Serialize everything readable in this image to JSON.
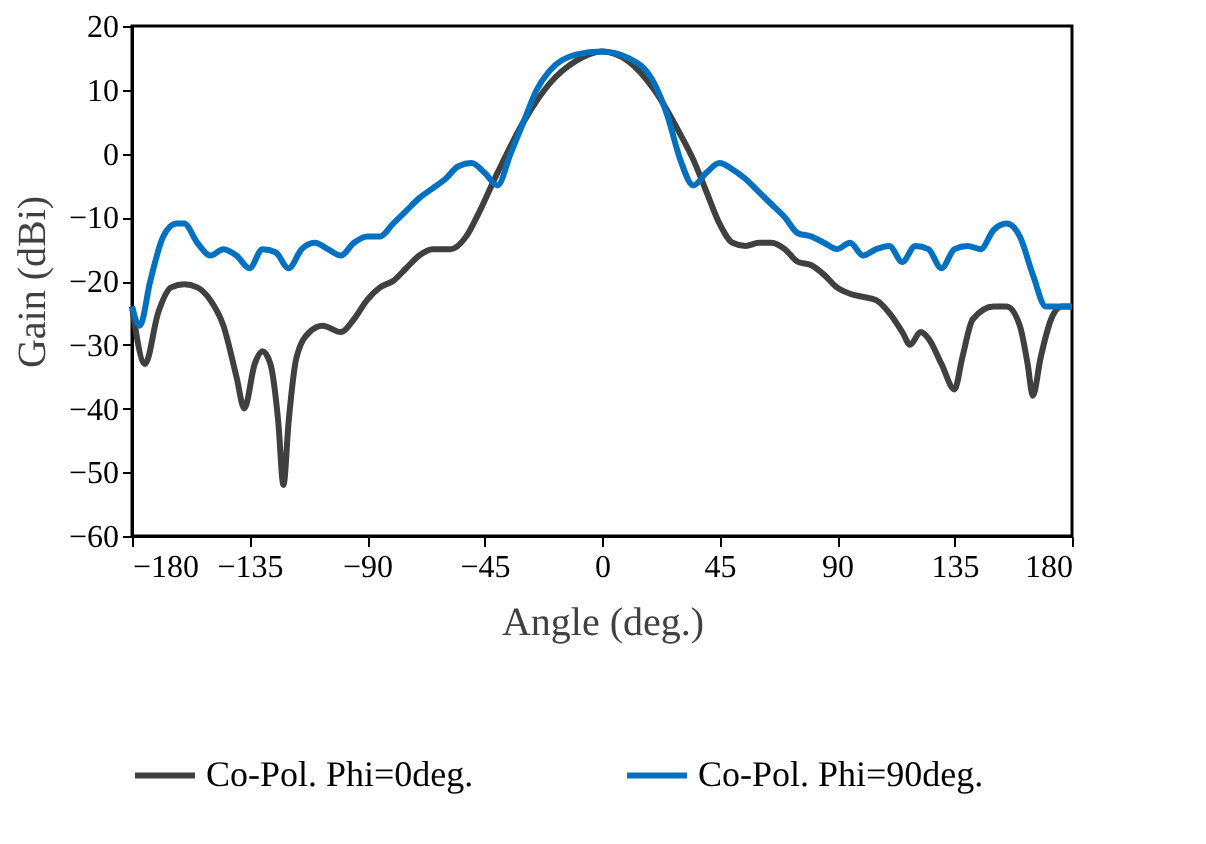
{
  "chart_data": {
    "type": "line",
    "xlabel": "Angle (deg.)",
    "ylabel": "Gain (dBi)",
    "xlim": [
      -180,
      180
    ],
    "xticks": [
      -180,
      -135,
      -90,
      -45,
      0,
      45,
      90,
      135,
      180
    ],
    "ylim": [
      -60,
      20
    ],
    "yticks": [
      -60,
      -50,
      -40,
      -30,
      -20,
      -10,
      0,
      10,
      20
    ],
    "grid": false,
    "legend": "bottom",
    "line_style": "solid",
    "marker": "none",
    "series": [
      {
        "name": "Co-Pol. Phi=0deg.",
        "color": "#404040",
        "x": [
          -180,
          -175,
          -170,
          -165,
          -160,
          -155,
          -150,
          -145,
          -140,
          -137,
          -133,
          -130,
          -127,
          -124,
          -122,
          -120,
          -117,
          -112,
          -107,
          -100,
          -95,
          -90,
          -85,
          -80,
          -75,
          -70,
          -65,
          -58,
          -52,
          -48,
          -40,
          -30,
          -20,
          -10,
          0,
          10,
          20,
          30,
          35,
          40,
          45,
          50,
          55,
          60,
          65,
          70,
          75,
          80,
          85,
          90,
          95,
          100,
          105,
          110,
          115,
          118,
          122,
          125,
          130,
          135,
          138,
          142,
          150,
          155,
          160,
          163,
          165,
          168,
          172,
          176,
          180
        ],
        "values": [
          -24,
          -33,
          -25,
          -21,
          -20.5,
          -21,
          -23,
          -27,
          -35,
          -40,
          -33,
          -31,
          -33,
          -42,
          -52,
          -42,
          -32,
          -28,
          -27,
          -28,
          -26,
          -23,
          -21,
          -20,
          -18,
          -16,
          -15,
          -15,
          -13,
          -10,
          -3,
          5,
          11,
          14.5,
          16,
          14.5,
          10,
          3,
          -1,
          -6,
          -11,
          -14,
          -14.5,
          -14,
          -14,
          -15,
          -17,
          -17.5,
          -19,
          -21,
          -22,
          -22.5,
          -23,
          -25,
          -28,
          -30,
          -28,
          -29,
          -33,
          -37,
          -32,
          -26,
          -24,
          -24,
          -27,
          -33,
          -38,
          -32,
          -26,
          -24,
          -24
        ]
      },
      {
        "name": "Co-Pol. Phi=90deg.",
        "color": "#0070c0",
        "x": [
          -180,
          -177,
          -173,
          -168,
          -163,
          -160,
          -155,
          -150,
          -145,
          -140,
          -135,
          -130,
          -125,
          -120,
          -115,
          -110,
          -105,
          -100,
          -95,
          -90,
          -85,
          -80,
          -75,
          -70,
          -65,
          -60,
          -55,
          -50,
          -45,
          -40,
          -35,
          -30,
          -25,
          -20,
          -10,
          0,
          10,
          20,
          25,
          30,
          35,
          40,
          45,
          50,
          55,
          60,
          65,
          70,
          75,
          80,
          85,
          90,
          95,
          100,
          105,
          110,
          115,
          120,
          125,
          130,
          135,
          140,
          145,
          150,
          155,
          160,
          165,
          170,
          175,
          180
        ],
        "values": [
          -24,
          -27,
          -20,
          -13,
          -11,
          -11,
          -14,
          -16,
          -15,
          -16,
          -18,
          -15,
          -15.5,
          -18,
          -15,
          -14,
          -15,
          -16,
          -14,
          -13,
          -13,
          -11,
          -9,
          -7,
          -5.5,
          -4,
          -2,
          -1.5,
          -3,
          -5,
          0,
          5,
          10,
          13,
          15.5,
          16,
          15,
          11,
          6,
          -1,
          -5,
          -3,
          -1.5,
          -2.5,
          -4,
          -6,
          -8,
          -10,
          -12.5,
          -13,
          -14,
          -15,
          -14,
          -16,
          -15,
          -14.5,
          -17,
          -14.5,
          -15,
          -18,
          -15,
          -14.5,
          -15,
          -12,
          -11,
          -13,
          -19,
          -24,
          -24,
          -24
        ]
      }
    ]
  }
}
